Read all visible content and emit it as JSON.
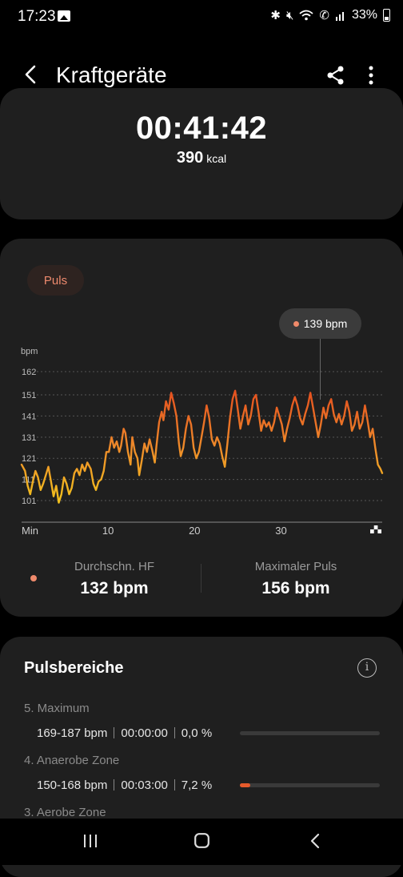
{
  "status_bar": {
    "time": "17:23",
    "battery_text": "33%",
    "icons": [
      "image-icon",
      "bluetooth-icon",
      "mute-icon",
      "wifi-icon",
      "wifi-calling-icon",
      "signal-icon",
      "battery-icon"
    ]
  },
  "header": {
    "title": "Kraftgeräte",
    "icons": [
      "back-arrow-icon",
      "share-icon",
      "more-vert-icon"
    ]
  },
  "summary": {
    "duration": "00:41:42",
    "calories_value": "390",
    "calories_unit": "kcal"
  },
  "heart_rate": {
    "chip_label": "Puls",
    "tooltip": "139 bpm",
    "avg_label": "Durchschn. HF",
    "avg_value": "132 bpm",
    "max_label": "Maximaler Puls",
    "max_value": "156 bpm",
    "accent_color": "#ef8a6c"
  },
  "chart_data": {
    "type": "line",
    "ylabel": "bpm",
    "xlabel": "",
    "yticks": [
      "162",
      "151",
      "141",
      "131",
      "121",
      "111",
      "101"
    ],
    "yticks_values": [
      162,
      151,
      141,
      131,
      121,
      111,
      101
    ],
    "xticks": [
      "Min",
      "10",
      "20",
      "30"
    ],
    "xticks_values": [
      0,
      10,
      20,
      30
    ],
    "xlim": [
      0,
      41.7
    ],
    "ylim": [
      98,
      167
    ],
    "grid": true,
    "end_marker": "flag-icon",
    "series": [
      {
        "points": [
          [
            0.0,
            118
          ],
          [
            0.4,
            115
          ],
          [
            0.7,
            108
          ],
          [
            1.0,
            104
          ],
          [
            1.3,
            110
          ],
          [
            1.6,
            115
          ],
          [
            1.9,
            112
          ],
          [
            2.2,
            106
          ],
          [
            2.5,
            109
          ],
          [
            2.8,
            113
          ],
          [
            3.1,
            117
          ],
          [
            3.4,
            110
          ],
          [
            3.7,
            103
          ],
          [
            4.0,
            108
          ],
          [
            4.3,
            100
          ],
          [
            4.6,
            104
          ],
          [
            4.9,
            112
          ],
          [
            5.2,
            109
          ],
          [
            5.5,
            104
          ],
          [
            5.8,
            107
          ],
          [
            6.1,
            114
          ],
          [
            6.4,
            116
          ],
          [
            6.7,
            113
          ],
          [
            7.0,
            118
          ],
          [
            7.3,
            115
          ],
          [
            7.6,
            119
          ],
          [
            8.0,
            116
          ],
          [
            8.3,
            109
          ],
          [
            8.6,
            106
          ],
          [
            8.9,
            110
          ],
          [
            9.2,
            111
          ],
          [
            9.5,
            115
          ],
          [
            9.8,
            124
          ],
          [
            10.1,
            124
          ],
          [
            10.4,
            131
          ],
          [
            10.7,
            126
          ],
          [
            11.0,
            129
          ],
          [
            11.3,
            124
          ],
          [
            11.5,
            127
          ],
          [
            11.8,
            135
          ],
          [
            12.0,
            133
          ],
          [
            12.3,
            124
          ],
          [
            12.6,
            118
          ],
          [
            12.8,
            131
          ],
          [
            13.1,
            124
          ],
          [
            13.4,
            121
          ],
          [
            13.6,
            113
          ],
          [
            13.9,
            120
          ],
          [
            14.2,
            128
          ],
          [
            14.5,
            124
          ],
          [
            14.8,
            130
          ],
          [
            15.1,
            125
          ],
          [
            15.4,
            119
          ],
          [
            15.6,
            127
          ],
          [
            15.9,
            138
          ],
          [
            16.2,
            143
          ],
          [
            16.4,
            139
          ],
          [
            16.7,
            148
          ],
          [
            17.0,
            144
          ],
          [
            17.3,
            152
          ],
          [
            17.6,
            147
          ],
          [
            17.9,
            141
          ],
          [
            18.2,
            128
          ],
          [
            18.4,
            122
          ],
          [
            18.7,
            126
          ],
          [
            19.0,
            135
          ],
          [
            19.3,
            141
          ],
          [
            19.6,
            137
          ],
          [
            19.9,
            126
          ],
          [
            20.2,
            121
          ],
          [
            20.5,
            124
          ],
          [
            20.8,
            131
          ],
          [
            21.1,
            138
          ],
          [
            21.4,
            146
          ],
          [
            21.7,
            140
          ],
          [
            22.0,
            130
          ],
          [
            22.3,
            127
          ],
          [
            22.6,
            131
          ],
          [
            22.9,
            128
          ],
          [
            23.2,
            122
          ],
          [
            23.5,
            117
          ],
          [
            23.8,
            128
          ],
          [
            24.1,
            140
          ],
          [
            24.4,
            149
          ],
          [
            24.7,
            153
          ],
          [
            25.0,
            144
          ],
          [
            25.3,
            135
          ],
          [
            25.6,
            141
          ],
          [
            25.9,
            146
          ],
          [
            26.2,
            137
          ],
          [
            26.5,
            141
          ],
          [
            26.8,
            149
          ],
          [
            27.1,
            151
          ],
          [
            27.4,
            143
          ],
          [
            27.7,
            134
          ],
          [
            28.0,
            139
          ],
          [
            28.3,
            136
          ],
          [
            28.6,
            138
          ],
          [
            28.9,
            134
          ],
          [
            29.2,
            138
          ],
          [
            29.5,
            145
          ],
          [
            29.8,
            141
          ],
          [
            30.1,
            137
          ],
          [
            30.4,
            129
          ],
          [
            30.7,
            135
          ],
          [
            31.0,
            140
          ],
          [
            31.3,
            146
          ],
          [
            31.6,
            150
          ],
          [
            31.9,
            146
          ],
          [
            32.2,
            140
          ],
          [
            32.5,
            137
          ],
          [
            32.8,
            142
          ],
          [
            33.1,
            146
          ],
          [
            33.4,
            152
          ],
          [
            33.7,
            145
          ],
          [
            34.0,
            138
          ],
          [
            34.3,
            131
          ],
          [
            34.6,
            137
          ],
          [
            34.9,
            145
          ],
          [
            35.2,
            140
          ],
          [
            35.5,
            146
          ],
          [
            35.8,
            149
          ],
          [
            36.1,
            142
          ],
          [
            36.4,
            138
          ],
          [
            36.7,
            142
          ],
          [
            37.0,
            137
          ],
          [
            37.3,
            141
          ],
          [
            37.6,
            148
          ],
          [
            37.9,
            143
          ],
          [
            38.2,
            134
          ],
          [
            38.5,
            137
          ],
          [
            38.8,
            143
          ],
          [
            39.1,
            135
          ],
          [
            39.4,
            138
          ],
          [
            39.7,
            146
          ],
          [
            40.0,
            139
          ],
          [
            40.3,
            131
          ],
          [
            40.6,
            135
          ],
          [
            40.9,
            126
          ],
          [
            41.2,
            118
          ],
          [
            41.5,
            116
          ],
          [
            41.7,
            114
          ]
        ],
        "gradient": [
          "#f2c21d",
          "#ee8a2a",
          "#e5501f"
        ]
      }
    ]
  },
  "zones": {
    "title": "Pulsbereiche",
    "info_icon": "info-icon",
    "items": [
      {
        "name": "5. Maximum",
        "range": "169-187 bpm",
        "duration": "00:00:00",
        "percent": "0,0 %",
        "fraction": 0.0
      },
      {
        "name": "4. Anaerobe Zone",
        "range": "150-168 bpm",
        "duration": "00:03:00",
        "percent": "7,2 %",
        "fraction": 0.072
      },
      {
        "name": "3. Aerobe Zone"
      }
    ]
  },
  "nav": {
    "icons": [
      "recents-icon",
      "home-icon",
      "back-icon"
    ]
  }
}
